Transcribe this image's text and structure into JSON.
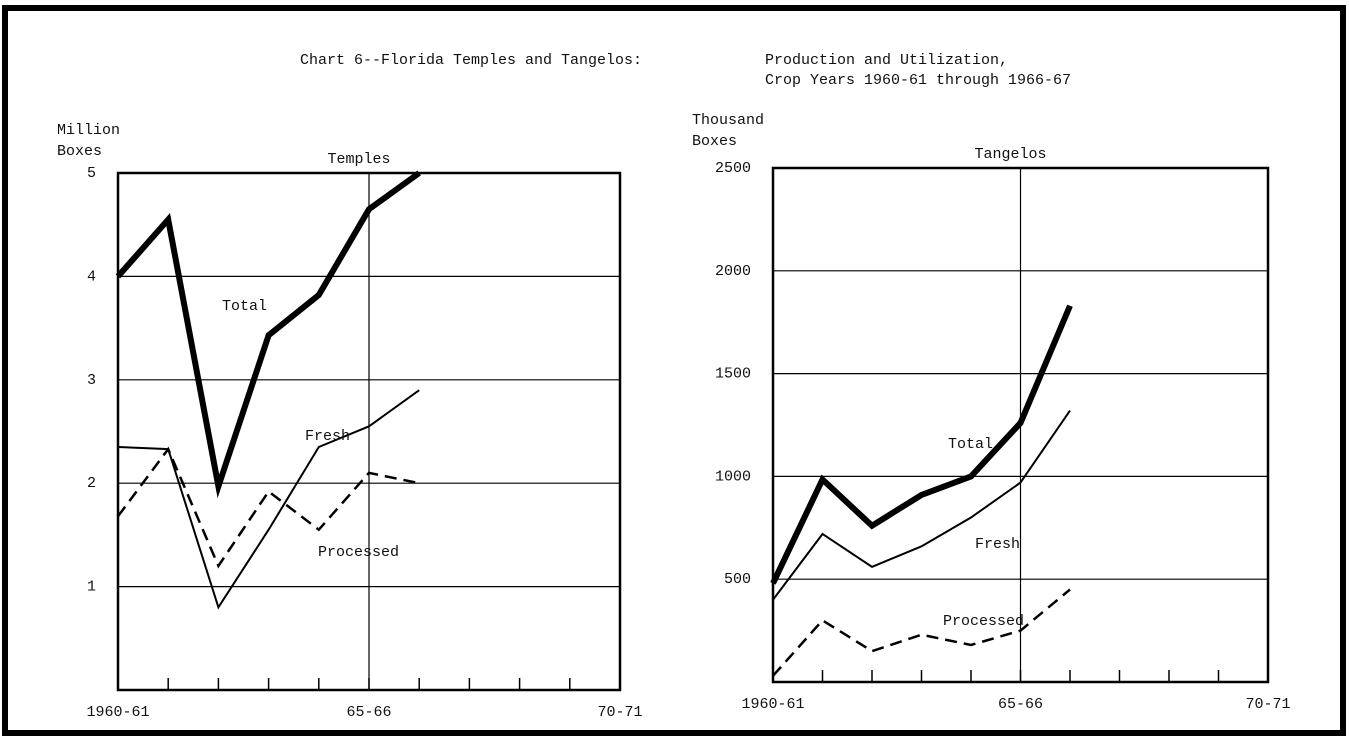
{
  "title_lines": [
    "Chart 6--Florida Temples and Tangelos:",
    "Production and Utilization,",
    "Crop Years 1960-61 through 1966-67"
  ],
  "chart_data": [
    {
      "type": "line",
      "title": "Temples",
      "ylabel_lines": [
        "Million",
        "Boxes"
      ],
      "categories": [
        "1960-61",
        null,
        null,
        null,
        null,
        "65-66",
        null,
        null,
        null,
        null,
        "70-71"
      ],
      "ylim": [
        0,
        5
      ],
      "yticks": [
        1,
        2,
        3,
        4,
        5
      ],
      "grid": true,
      "series": [
        {
          "name": "Total",
          "color": "#000000",
          "line_width": 6,
          "dashed": false,
          "values": [
            4.0,
            4.55,
            1.97,
            3.43,
            3.82,
            4.65,
            5.0,
            null,
            null,
            null,
            null
          ]
        },
        {
          "name": "Fresh",
          "color": "#000000",
          "line_width": 2,
          "dashed": false,
          "values": [
            2.35,
            2.33,
            0.8,
            1.55,
            2.35,
            2.55,
            2.9,
            null,
            null,
            null,
            null
          ]
        },
        {
          "name": "Processed",
          "color": "#000000",
          "line_width": 2.5,
          "dashed": true,
          "values": [
            1.68,
            2.33,
            1.2,
            1.92,
            1.55,
            2.1,
            2.0,
            null,
            null,
            null,
            null
          ]
        }
      ]
    },
    {
      "type": "line",
      "title": "Tangelos",
      "ylabel_lines": [
        "Thousand",
        "Boxes"
      ],
      "categories": [
        "1960-61",
        null,
        null,
        null,
        null,
        "65-66",
        null,
        null,
        null,
        null,
        "70-71"
      ],
      "ylim": [
        0,
        2500
      ],
      "yticks": [
        500,
        1000,
        1500,
        2000,
        2500
      ],
      "grid": true,
      "series": [
        {
          "name": "Total",
          "color": "#000000",
          "line_width": 6,
          "dashed": false,
          "values": [
            480,
            985,
            760,
            910,
            1000,
            1260,
            1830,
            null,
            null,
            null,
            null
          ]
        },
        {
          "name": "Fresh",
          "color": "#000000",
          "line_width": 2,
          "dashed": false,
          "values": [
            400,
            720,
            560,
            660,
            800,
            970,
            1320,
            null,
            null,
            null,
            null
          ]
        },
        {
          "name": "Processed",
          "color": "#000000",
          "line_width": 2.5,
          "dashed": true,
          "values": [
            30,
            300,
            150,
            230,
            180,
            250,
            450,
            null,
            null,
            null,
            null
          ]
        }
      ]
    }
  ]
}
